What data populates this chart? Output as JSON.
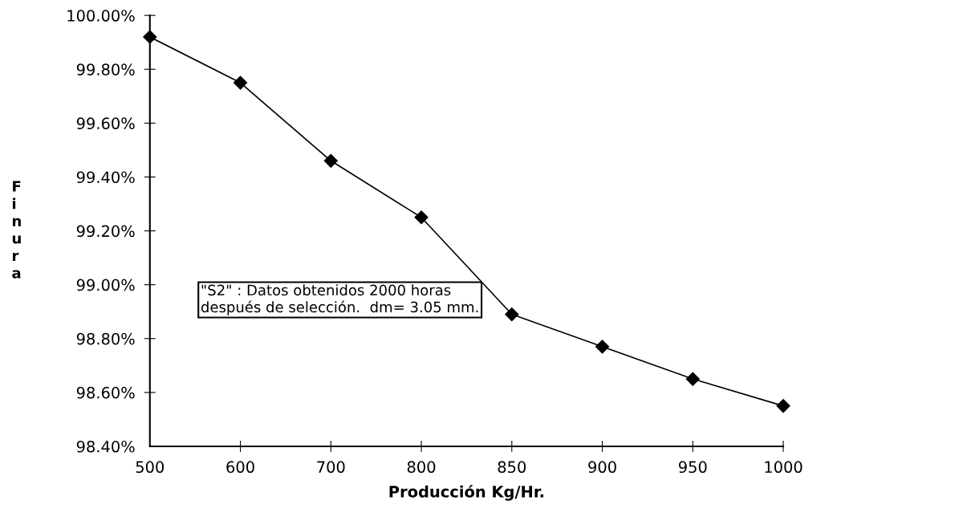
{
  "chart_data": {
    "type": "line",
    "xlabel": "Producción Kg/Hr.",
    "ylabel": "Finura",
    "categories": [
      "500",
      "600",
      "700",
      "800",
      "850",
      "900",
      "950",
      "1000"
    ],
    "series": [
      {
        "color": "#000000",
        "values": [
          99.92,
          99.75,
          99.46,
          99.25,
          98.89,
          98.77,
          98.65,
          98.55
        ]
      }
    ],
    "ylim": [
      98.4,
      100.0
    ],
    "yticks": [
      {
        "value": 98.4,
        "label": "98.40%"
      },
      {
        "value": 98.6,
        "label": "98.60%"
      },
      {
        "value": 98.8,
        "label": "98.80%"
      },
      {
        "value": 99.0,
        "label": "99.00%"
      },
      {
        "value": 99.2,
        "label": "99.20%"
      },
      {
        "value": 99.4,
        "label": "99.40%"
      },
      {
        "value": 99.6,
        "label": "99.60%"
      },
      {
        "value": 99.8,
        "label": "99.80%"
      },
      {
        "value": 100.0,
        "label": "100.00%"
      }
    ],
    "annotations": [
      "\"S2\" : Datos obtenidos 2000 horas\ndespués de selección.  dm= 3.05 mm."
    ],
    "marker": "diamond",
    "line_style": "solid",
    "grid": false,
    "legend": false
  }
}
